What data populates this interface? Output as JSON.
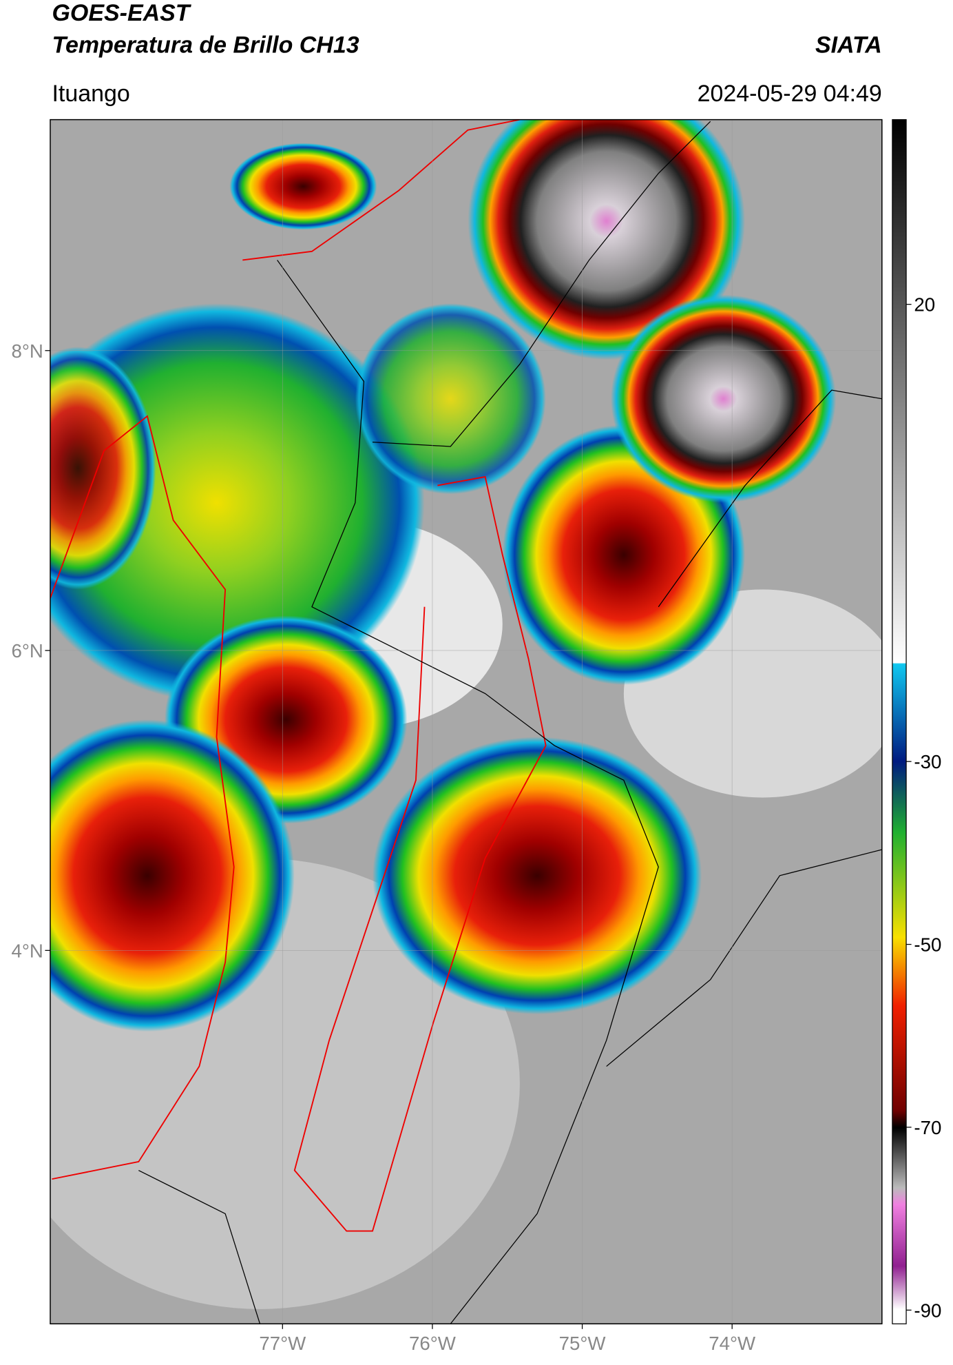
{
  "header": {
    "title": "GOES-EAST",
    "subtitle": "Temperatura de Brillo CH13",
    "brand": "SIATA",
    "location": "Ituango",
    "timestamp": "2024-05-29 04:49"
  },
  "map": {
    "xlim": [
      -78.55,
      -73.0
    ],
    "ylim": [
      1.51,
      9.54
    ],
    "xticks": [
      {
        "value": -77,
        "label": "77°W"
      },
      {
        "value": -76,
        "label": "76°W"
      },
      {
        "value": -75,
        "label": "75°W"
      },
      {
        "value": -74,
        "label": "74°W"
      }
    ],
    "yticks": [
      {
        "value": 4,
        "label": "4°N"
      },
      {
        "value": 6,
        "label": "6°N"
      },
      {
        "value": 8,
        "label": "8°N"
      }
    ],
    "grid": true
  },
  "colorbar": {
    "clim": [
      -91.5,
      40.2
    ],
    "ticks": [
      20,
      -30,
      -50,
      -70,
      -90
    ]
  }
}
